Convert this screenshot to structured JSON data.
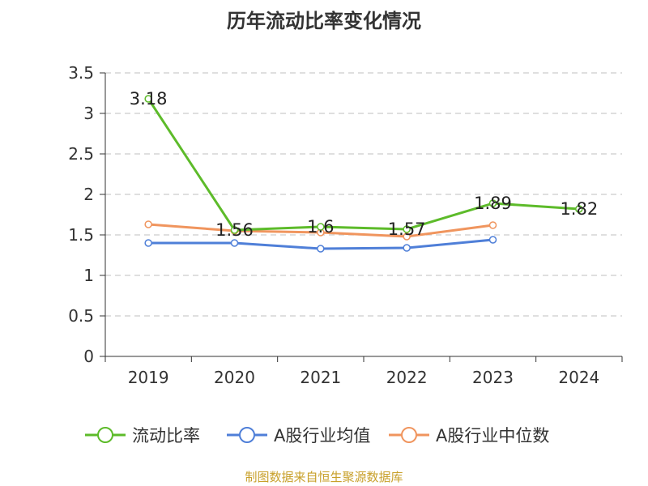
{
  "chart_data": {
    "type": "line",
    "title": "历年流动比率变化情况",
    "categories": [
      "2019",
      "2020",
      "2021",
      "2022",
      "2023",
      "2024"
    ],
    "ylim": [
      0,
      3.5
    ],
    "yticks": [
      "0",
      "0.5",
      "1",
      "1.5",
      "2",
      "2.5",
      "3",
      "3.5"
    ],
    "grid": true,
    "legend_position": "bottom",
    "series": [
      {
        "name": "流动比率",
        "color": "#5dbb2a",
        "values": [
          3.18,
          1.56,
          1.6,
          1.57,
          1.89,
          1.82
        ],
        "labels": [
          "3.18",
          "1.56",
          "1.6",
          "1.57",
          "1.89",
          "1.82"
        ]
      },
      {
        "name": "A股行业均值",
        "color": "#4f7fd8",
        "values": [
          1.4,
          1.4,
          1.33,
          1.34,
          1.44,
          null
        ]
      },
      {
        "name": "A股行业中位数",
        "color": "#f0955e",
        "values": [
          1.63,
          1.55,
          1.53,
          1.48,
          1.62,
          null
        ]
      }
    ],
    "source": "制图数据来自恒生聚源数据库"
  }
}
